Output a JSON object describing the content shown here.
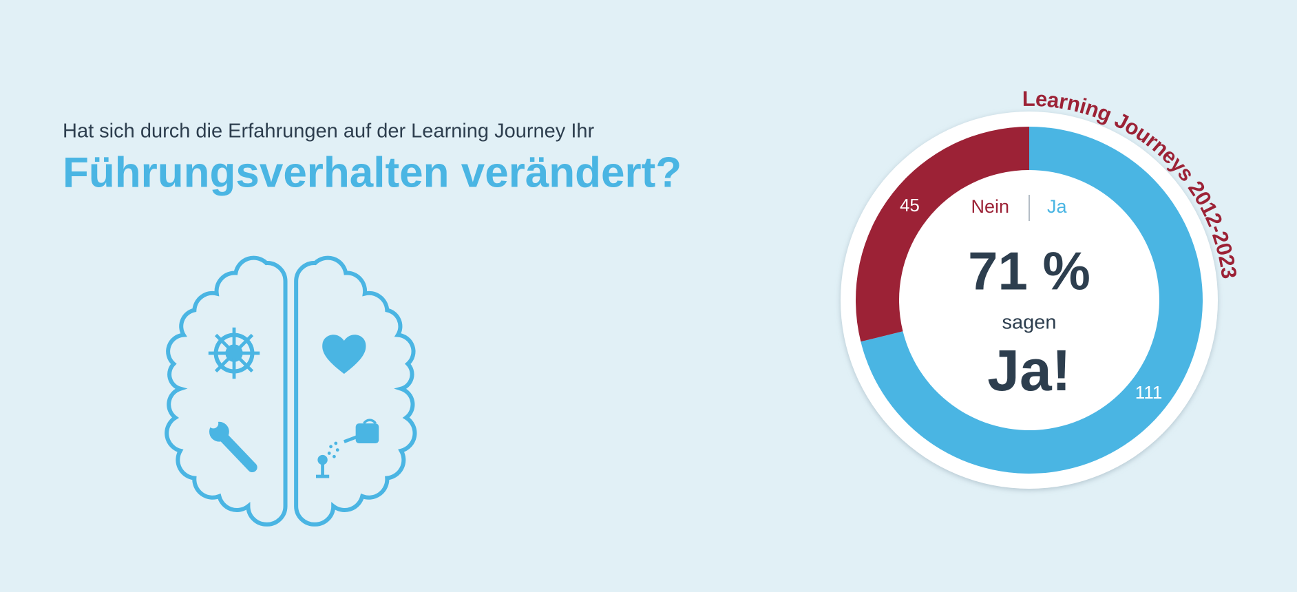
{
  "header": {
    "question": "Hat sich durch die Erfahrungen auf der Learning Journey Ihr",
    "title": "Führungsverhalten verändert?"
  },
  "chart_data": {
    "type": "donut",
    "arc_title": "Learning Journeys 2012-2023",
    "categories": [
      "Nein",
      "Ja"
    ],
    "values": [
      45,
      111
    ],
    "colors": [
      "#9c2236",
      "#4ab5e3"
    ],
    "center_text": [
      "71 %",
      "sagen",
      "Ja!"
    ]
  }
}
